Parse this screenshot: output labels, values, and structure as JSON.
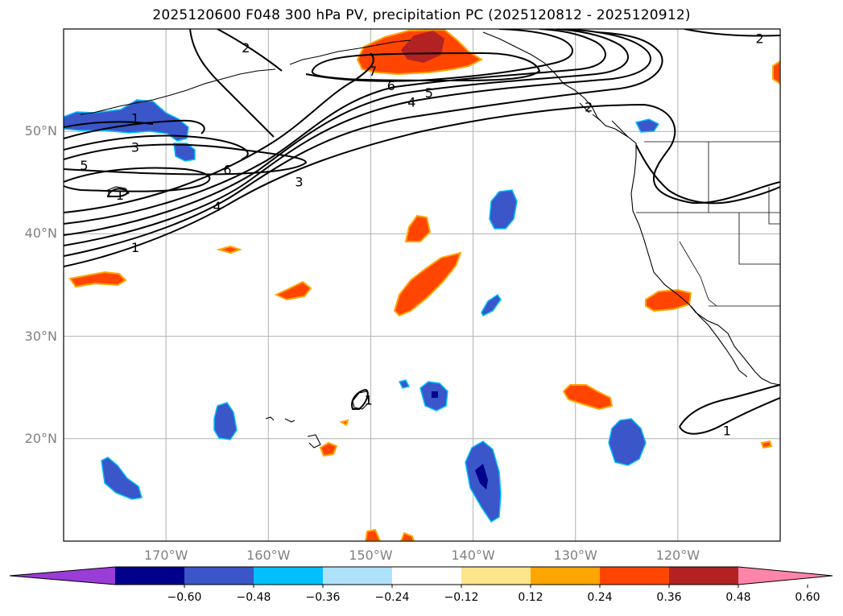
{
  "title": "2025120600 F048 300 hPa PV, precipitation PC (2025120812 - 2025120912)",
  "map": {
    "projection": "PlateCarree",
    "lon_range": [
      -180,
      -110
    ],
    "lat_range": [
      10,
      60
    ],
    "gridline_color": "#b0b0b0",
    "coastline_color": "#000000",
    "lat_labels": [
      {
        "lat": 50,
        "text": "50°N"
      },
      {
        "lat": 40,
        "text": "40°N"
      },
      {
        "lat": 30,
        "text": "30°N"
      },
      {
        "lat": 20,
        "text": "20°N"
      }
    ],
    "lon_labels": [
      {
        "lon": -170,
        "text": "170°W"
      },
      {
        "lon": -160,
        "text": "160°W"
      },
      {
        "lon": -150,
        "text": "150°W"
      },
      {
        "lon": -140,
        "text": "140°W"
      },
      {
        "lon": -130,
        "text": "130°W"
      },
      {
        "lon": -120,
        "text": "120°W"
      }
    ]
  },
  "pv_contours": {
    "name": "300 hPa PV",
    "color": "#000000",
    "labels": [
      "1",
      "2",
      "3",
      "4",
      "5",
      "6",
      "7"
    ]
  },
  "contour_labels": [
    {
      "text": "1",
      "lon": -173,
      "lat": 51.3
    },
    {
      "text": "3",
      "lon": -173,
      "lat": 48.5
    },
    {
      "text": "5",
      "lon": -178,
      "lat": 46.7
    },
    {
      "text": "6",
      "lon": -164,
      "lat": 46.3
    },
    {
      "text": "1",
      "lon": -174.5,
      "lat": 43.8
    },
    {
      "text": "4",
      "lon": -165,
      "lat": 42.7
    },
    {
      "text": "3",
      "lon": -157,
      "lat": 45.1
    },
    {
      "text": "1",
      "lon": -173,
      "lat": 38.7
    },
    {
      "text": "2",
      "lon": -162.2,
      "lat": 58.2
    },
    {
      "text": "7",
      "lon": -149.8,
      "lat": 55.9
    },
    {
      "text": "6",
      "lon": -148,
      "lat": 54.5
    },
    {
      "text": "5",
      "lon": -144.3,
      "lat": 53.8
    },
    {
      "text": "4",
      "lon": -146,
      "lat": 52.9
    },
    {
      "text": "2",
      "lon": -128.7,
      "lat": 52.4
    },
    {
      "text": "2",
      "lon": -112,
      "lat": 59.1
    },
    {
      "text": "1",
      "lon": -150.2,
      "lat": 23.8
    },
    {
      "text": "1",
      "lon": -115.2,
      "lat": 20.8
    }
  ],
  "colorbar": {
    "variable": "precipitation PC",
    "extend": "both",
    "ticks": [
      "−0.60",
      "−0.48",
      "−0.36",
      "−0.24",
      "−0.12",
      "0.12",
      "0.24",
      "0.36",
      "0.48",
      "0.60"
    ],
    "colors": [
      "#9a3cd6",
      "#00008b",
      "#3a56c9",
      "#00bfff",
      "#aee2fa",
      "#ffffff",
      "#fde68a",
      "#ffa500",
      "#ff4500",
      "#b22222",
      "#ff85a8"
    ]
  }
}
